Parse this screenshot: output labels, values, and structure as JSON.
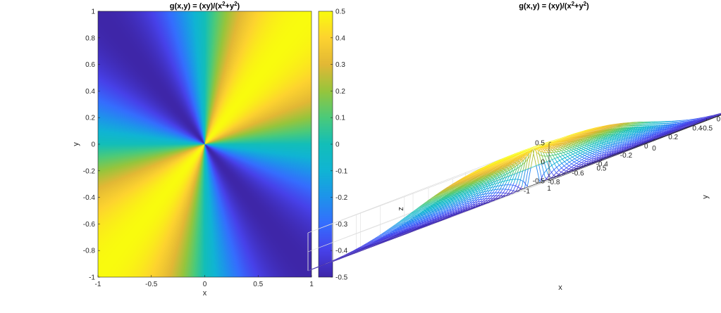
{
  "figure": {
    "colors": {
      "colormap": "parula",
      "low": "#3e26a8",
      "mid": "#12beb9",
      "high": "#f9fb0e"
    }
  },
  "chart_data": [
    {
      "type": "heatmap",
      "function": "g(x,y) = xy/(x^2+y^2)",
      "title": "g(x,y) = (xy)/(x²+y²)",
      "title_parts": {
        "prefix": "g(x,y) = (xy)/(x",
        "sup1": "2",
        "mid": "+y",
        "sup2": "2",
        "suffix": ")"
      },
      "xlabel": "x",
      "ylabel": "y",
      "xlim": [
        -1,
        1
      ],
      "ylim": [
        -1,
        1
      ],
      "xticks": [
        -1,
        -0.5,
        0,
        0.5,
        1
      ],
      "xtick_labels": [
        "-1",
        "-0.5",
        "0",
        "0.5",
        "1"
      ],
      "yticks": [
        -1,
        -0.8,
        -0.6,
        -0.4,
        -0.2,
        0,
        0.2,
        0.4,
        0.6,
        0.8,
        1
      ],
      "ytick_labels": [
        "-1",
        "-0.8",
        "-0.6",
        "-0.4",
        "-0.2",
        "0",
        "0.2",
        "0.4",
        "0.6",
        "0.8",
        "1"
      ],
      "colorbar": {
        "clim": [
          -0.5,
          0.5
        ],
        "ticks": [
          -0.5,
          -0.4,
          -0.3,
          -0.2,
          -0.1,
          0,
          0.1,
          0.2,
          0.3,
          0.4,
          0.5
        ],
        "tick_labels": [
          "-0.5",
          "-0.4",
          "-0.3",
          "-0.2",
          "-0.1",
          "0",
          "0.1",
          "0.2",
          "0.3",
          "0.4",
          "0.5"
        ]
      }
    },
    {
      "type": "surface",
      "function": "g(x,y) = xy/(x^2+y^2)",
      "title": "g(x,y) = (xy)/(x²+y²)",
      "title_parts": {
        "prefix": "g(x,y) = (xy)/(x",
        "sup1": "2",
        "mid": "+y",
        "sup2": "2",
        "suffix": ")"
      },
      "xlabel": "x",
      "ylabel": "y",
      "zlabel": "z",
      "xlim": [
        -1,
        1
      ],
      "ylim": [
        -1,
        1
      ],
      "zlim": [
        -0.5,
        0.5
      ],
      "xticks": [
        1,
        0.5,
        0,
        -0.5,
        -1
      ],
      "xtick_labels": [
        "1",
        "0.5",
        "0",
        "-0.5",
        "-1"
      ],
      "yticks": [
        -1,
        -0.8,
        -0.6,
        -0.4,
        -0.2,
        0,
        0.2,
        0.4,
        0.6,
        0.8,
        1
      ],
      "ytick_labels": [
        "-1",
        "-0.8",
        "-0.6",
        "-0.4",
        "-0.2",
        "0",
        "0.2",
        "0.4",
        "0.6",
        "0.8",
        "1"
      ],
      "zticks": [
        -0.5,
        0,
        0.5
      ],
      "ztick_labels": [
        "-0.5",
        "0",
        "0.5"
      ],
      "grid": true
    }
  ]
}
